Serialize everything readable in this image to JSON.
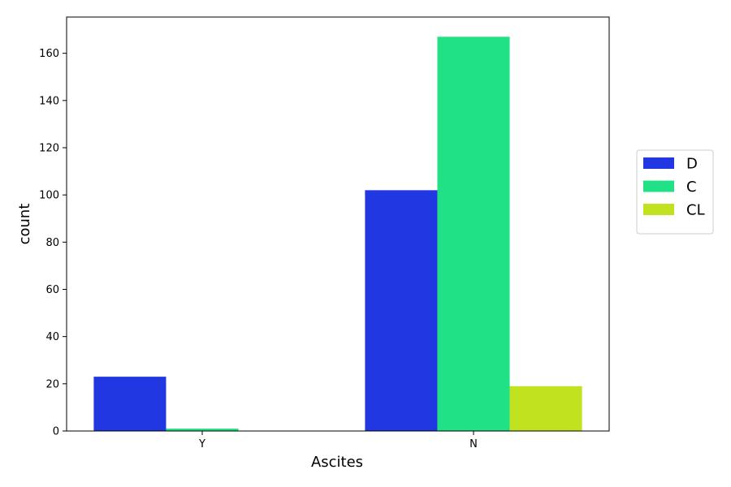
{
  "chart_data": {
    "type": "bar",
    "title": "",
    "xlabel": "Ascites",
    "ylabel": "count",
    "categories": [
      "Y",
      "N"
    ],
    "series": [
      {
        "name": "D",
        "color": "#2137e1",
        "values": [
          23,
          102
        ]
      },
      {
        "name": "C",
        "color": "#21e186",
        "values": [
          1,
          167
        ]
      },
      {
        "name": "CL",
        "color": "#c0e21f",
        "values": [
          0,
          19
        ]
      }
    ],
    "ylim": [
      0,
      175.35
    ],
    "yticks": [
      0,
      20,
      40,
      60,
      80,
      100,
      120,
      140,
      160
    ],
    "grid": false,
    "legend_position": "right-center"
  }
}
